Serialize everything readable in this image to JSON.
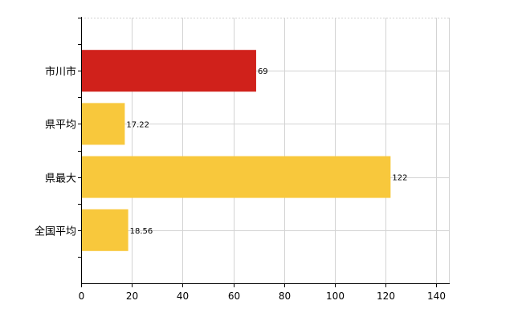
{
  "chart_data": {
    "type": "bar",
    "orientation": "horizontal",
    "categories": [
      "市川市",
      "県平均",
      "県最大",
      "全国平均"
    ],
    "values": [
      69,
      17.22,
      122,
      18.56
    ],
    "value_labels": [
      "69",
      "17.22",
      "122",
      "18.56"
    ],
    "colors": [
      "#d0211b",
      "#f8c83c",
      "#f8c83c",
      "#f8c83c"
    ],
    "title": "",
    "xlabel": "",
    "ylabel": "",
    "xlim": [
      0,
      145
    ],
    "xticks": [
      0,
      20,
      40,
      60,
      80,
      100,
      120,
      140
    ],
    "grid": true,
    "legend": "none"
  }
}
